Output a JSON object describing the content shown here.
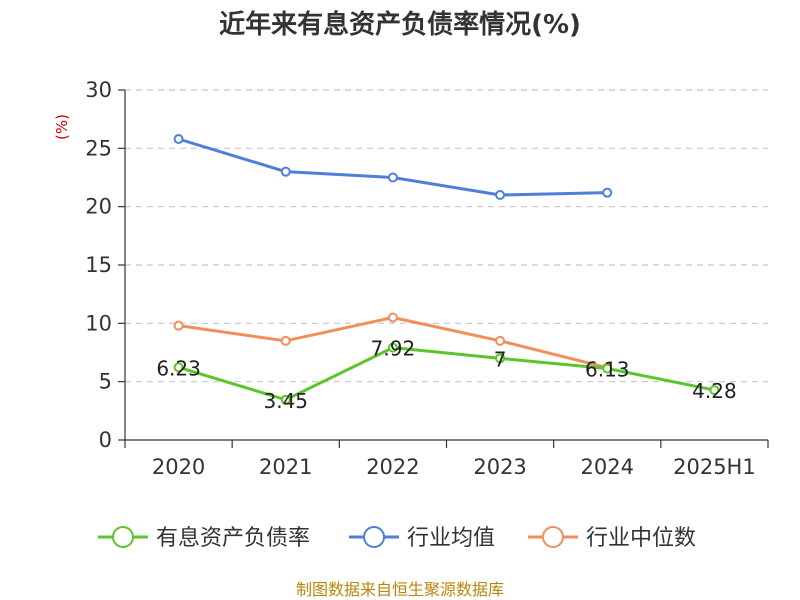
{
  "chart_data": {
    "type": "line",
    "title": "近年来有息资产负债率情况(%)",
    "ylabel": "(%)",
    "categories": [
      "2020",
      "2021",
      "2022",
      "2023",
      "2024",
      "2025H1"
    ],
    "yticks": [
      "0",
      "5",
      "10",
      "15",
      "20",
      "25",
      "30"
    ],
    "ylim": [
      0,
      30
    ],
    "grid": true,
    "legend_position": "bottom",
    "series": [
      {
        "name": "有息资产负债率",
        "color": "#5cc42c",
        "values": [
          6.23,
          3.45,
          7.92,
          7,
          6.13,
          4.28
        ],
        "labels": [
          "6.23",
          "3.45",
          "7.92",
          "7",
          "6.13",
          "4.28"
        ]
      },
      {
        "name": "行业均值",
        "color": "#4f7fd8",
        "values": [
          25.8,
          23.0,
          22.5,
          21.0,
          21.2,
          null
        ]
      },
      {
        "name": "行业中位数",
        "color": "#f28e5a",
        "values": [
          9.8,
          8.5,
          10.5,
          8.5,
          6.2,
          null
        ]
      }
    ],
    "source": "制图数据来自恒生聚源数据库"
  }
}
